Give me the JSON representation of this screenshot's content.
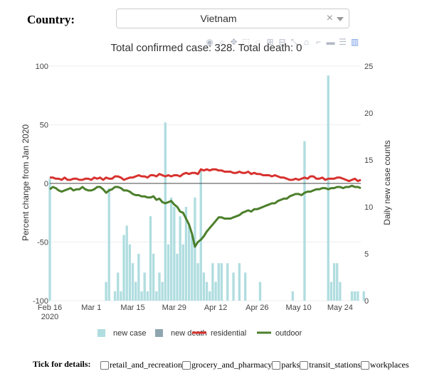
{
  "controls": {
    "country_label": "Country:",
    "selected_country": "Vietnam",
    "clear_symbol": "×"
  },
  "modebar_icons": [
    "camera-icon",
    "zoom-icon",
    "pan-icon",
    "box-select-icon",
    "lasso-icon",
    "zoom-in-icon",
    "zoom-out-icon",
    "autoscale-icon",
    "home-icon",
    "spike-icon",
    "hover-closest-icon",
    "hover-compare-icon",
    "plotly-logo-icon"
  ],
  "footer": {
    "label": "Tick for details:",
    "options": [
      "retail_and_recreation",
      "grocery_and_pharmacy",
      "parks",
      "transit_stations",
      "workplaces"
    ]
  },
  "colors": {
    "new_case": "#b0dde0",
    "new_death": "#8fa6b0",
    "residential": "#d7322f",
    "outdoor": "#4c7f2b",
    "grid": "#eeeeee"
  },
  "chart_data": {
    "type": "bar",
    "title": "Total confirmed case: 328. Total death: 0",
    "x_start": "2020-02-16",
    "x_end": "2020-05-31",
    "x_ticks": [
      {
        "date": "2020-02-16",
        "label": "Feb 16",
        "sub": "2020"
      },
      {
        "date": "2020-03-01",
        "label": "Mar 1"
      },
      {
        "date": "2020-03-15",
        "label": "Mar 15"
      },
      {
        "date": "2020-03-29",
        "label": "Mar 29"
      },
      {
        "date": "2020-04-12",
        "label": "Apr 12"
      },
      {
        "date": "2020-04-26",
        "label": "Apr 26"
      },
      {
        "date": "2020-05-10",
        "label": "May 10"
      },
      {
        "date": "2020-05-24",
        "label": "May 24"
      }
    ],
    "y_left": {
      "label": "Percent change from Jan 2020",
      "range": [
        -100,
        100
      ],
      "ticks": [
        -100,
        -50,
        0,
        50,
        100
      ]
    },
    "y_right": {
      "label": "Daily new case counts",
      "range": [
        0,
        25
      ],
      "ticks": [
        0,
        5,
        10,
        15,
        20,
        25
      ]
    },
    "legend": [
      "new case",
      "new death",
      "residential",
      "outdoor"
    ],
    "legend_position": "bottom",
    "bars_new_case": [
      {
        "date": "2020-02-16",
        "v": 13
      },
      {
        "date": "2020-03-06",
        "v": 2
      },
      {
        "date": "2020-03-07",
        "v": 12
      },
      {
        "date": "2020-03-09",
        "v": 1
      },
      {
        "date": "2020-03-10",
        "v": 3
      },
      {
        "date": "2020-03-11",
        "v": 1
      },
      {
        "date": "2020-03-12",
        "v": 7
      },
      {
        "date": "2020-03-13",
        "v": 8
      },
      {
        "date": "2020-03-14",
        "v": 6
      },
      {
        "date": "2020-03-15",
        "v": 4
      },
      {
        "date": "2020-03-16",
        "v": 2
      },
      {
        "date": "2020-03-17",
        "v": 5
      },
      {
        "date": "2020-03-18",
        "v": 1
      },
      {
        "date": "2020-03-19",
        "v": 3
      },
      {
        "date": "2020-03-20",
        "v": 1
      },
      {
        "date": "2020-03-21",
        "v": 9
      },
      {
        "date": "2020-03-22",
        "v": 5
      },
      {
        "date": "2020-03-23",
        "v": 1
      },
      {
        "date": "2020-03-24",
        "v": 3
      },
      {
        "date": "2020-03-25",
        "v": 2
      },
      {
        "date": "2020-03-26",
        "v": 19
      },
      {
        "date": "2020-03-27",
        "v": 6
      },
      {
        "date": "2020-03-28",
        "v": 11
      },
      {
        "date": "2020-03-29",
        "v": 10
      },
      {
        "date": "2020-03-30",
        "v": 5
      },
      {
        "date": "2020-03-31",
        "v": 9
      },
      {
        "date": "2020-04-01",
        "v": 6
      },
      {
        "date": "2020-04-02",
        "v": 10
      },
      {
        "date": "2020-04-03",
        "v": 8
      },
      {
        "date": "2020-04-04",
        "v": 7
      },
      {
        "date": "2020-04-05",
        "v": 11
      },
      {
        "date": "2020-04-06",
        "v": 4
      },
      {
        "date": "2020-04-07",
        "v": 14
      },
      {
        "date": "2020-04-08",
        "v": 3
      },
      {
        "date": "2020-04-09",
        "v": 2
      },
      {
        "date": "2020-04-10",
        "v": 1
      },
      {
        "date": "2020-04-11",
        "v": 4
      },
      {
        "date": "2020-04-12",
        "v": 2
      },
      {
        "date": "2020-04-13",
        "v": 4
      },
      {
        "date": "2020-04-14",
        "v": 4
      },
      {
        "date": "2020-04-16",
        "v": 4
      },
      {
        "date": "2020-04-18",
        "v": 3
      },
      {
        "date": "2020-04-20",
        "v": 4
      },
      {
        "date": "2020-04-22",
        "v": 3
      },
      {
        "date": "2020-04-27",
        "v": 2
      },
      {
        "date": "2020-05-08",
        "v": 1
      },
      {
        "date": "2020-05-12",
        "v": 17
      },
      {
        "date": "2020-05-20",
        "v": 24
      },
      {
        "date": "2020-05-21",
        "v": 2
      },
      {
        "date": "2020-05-22",
        "v": 4
      },
      {
        "date": "2020-05-23",
        "v": 4
      },
      {
        "date": "2020-05-24",
        "v": 2
      },
      {
        "date": "2020-05-28",
        "v": 1
      },
      {
        "date": "2020-05-29",
        "v": 1
      },
      {
        "date": "2020-05-30",
        "v": 1
      },
      {
        "date": "2020-06-01",
        "v": 1
      }
    ],
    "bars_new_death": [],
    "residential": [
      5,
      5,
      4,
      4,
      3,
      5,
      3,
      3,
      4,
      4,
      3,
      3,
      4,
      4,
      3,
      5,
      4,
      5,
      3,
      5,
      4,
      4,
      6,
      6,
      5,
      3,
      4,
      5,
      5,
      6,
      7,
      6,
      6,
      5,
      7,
      7,
      6,
      8,
      7,
      6,
      7,
      6,
      7,
      7,
      6,
      8,
      9,
      8,
      9,
      9,
      8,
      12,
      11,
      12,
      11,
      12,
      12,
      11,
      11,
      10,
      10,
      10,
      9,
      9,
      10,
      9,
      9,
      10,
      8,
      9,
      8,
      8,
      7,
      7,
      7,
      6,
      7,
      6,
      5,
      5,
      4,
      3,
      3,
      4,
      3,
      4,
      5,
      4,
      6,
      6,
      4,
      4,
      5,
      3,
      4,
      4,
      4,
      5,
      5,
      4,
      3,
      2,
      3,
      4,
      2,
      3
    ],
    "outdoor": [
      -5,
      -3,
      -4,
      -6,
      -7,
      -6,
      -5,
      -4,
      -6,
      -5,
      -5,
      -3,
      -5,
      -6,
      -6,
      -5,
      -3,
      -3,
      -5,
      -8,
      -6,
      -5,
      -3,
      -3,
      -4,
      -6,
      -6,
      -7,
      -9,
      -10,
      -10,
      -11,
      -11,
      -12,
      -12,
      -11,
      -14,
      -13,
      -16,
      -17,
      -16,
      -15,
      -18,
      -20,
      -24,
      -25,
      -30,
      -35,
      -43,
      -54,
      -50,
      -48,
      -45,
      -41,
      -38,
      -35,
      -32,
      -29,
      -29,
      -30,
      -30,
      -30,
      -29,
      -28,
      -27,
      -25,
      -24,
      -23,
      -24,
      -22,
      -22,
      -21,
      -20,
      -19,
      -18,
      -17,
      -17,
      -15,
      -14,
      -13,
      -13,
      -11,
      -10,
      -9,
      -9,
      -10,
      -8,
      -7,
      -7,
      -6,
      -5,
      -5,
      -4,
      -4,
      -5,
      -4,
      -4,
      -3,
      -3,
      -4,
      -3,
      -3,
      -2,
      -3,
      -3,
      -4
    ]
  }
}
